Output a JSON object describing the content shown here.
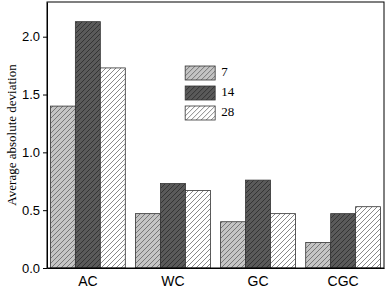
{
  "chart_data": {
    "type": "bar",
    "y_label": "Average absolute deviation",
    "categories": [
      "AC",
      "WC",
      "GC",
      "CGC"
    ],
    "series": [
      {
        "name": "7",
        "color": "#c4c4c4",
        "values": [
          1.4,
          0.47,
          0.4,
          0.22
        ]
      },
      {
        "name": "14",
        "color": "#5a5a5a",
        "values": [
          2.13,
          0.73,
          0.76,
          0.47
        ]
      },
      {
        "name": "28",
        "color": "#ffffff",
        "values": [
          1.73,
          0.67,
          0.47,
          0.53
        ]
      }
    ],
    "ylim": [
      0,
      2.3
    ],
    "yticks": [
      {
        "value": 0,
        "label": "0.0"
      },
      {
        "value": 0.5,
        "label": "0.5"
      },
      {
        "value": 1,
        "label": "1.0"
      },
      {
        "value": 1.5,
        "label": "1.5"
      },
      {
        "value": 2,
        "label": "2.0"
      }
    ],
    "legend": "upper center",
    "grid": false
  }
}
